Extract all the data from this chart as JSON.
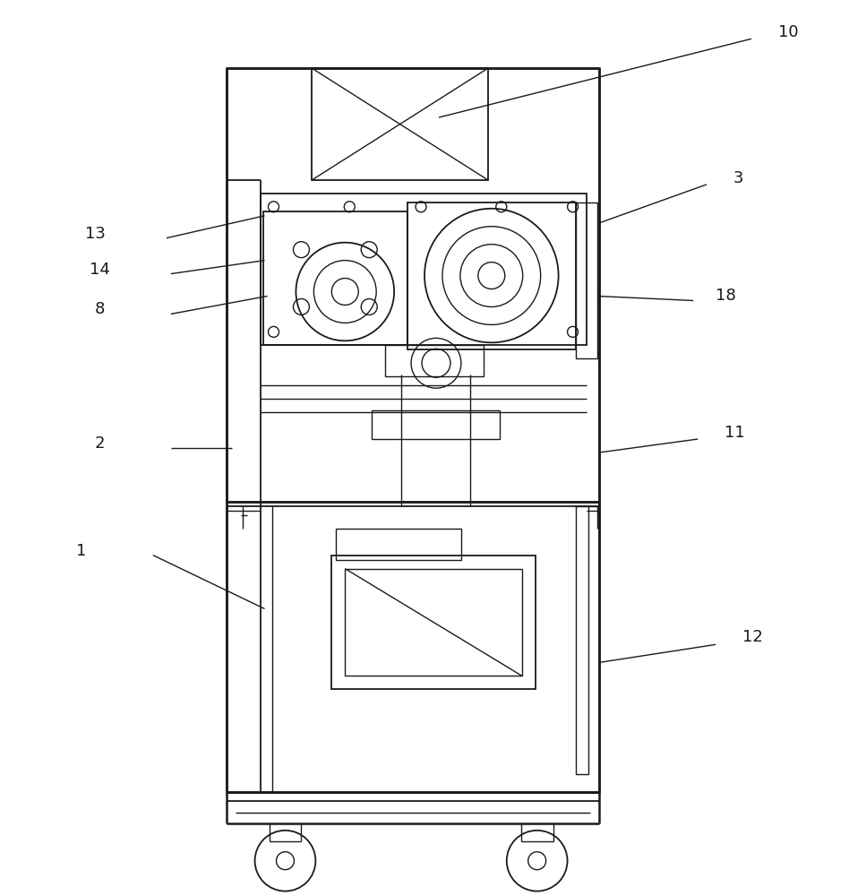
{
  "bg_color": "#ffffff",
  "line_color": "#1a1a1a",
  "lw_main": 1.8,
  "lw_thin": 1.0,
  "lw_med": 1.3,
  "fig_width": 9.67,
  "fig_height": 10.0,
  "label_fontsize": 13
}
